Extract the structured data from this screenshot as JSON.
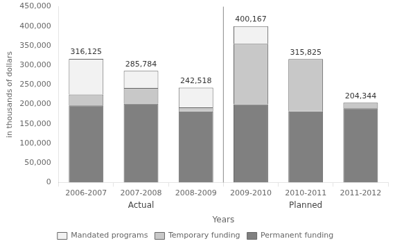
{
  "chart_data": {
    "type": "bar",
    "stacked": true,
    "categories": [
      "2006-2007",
      "2007-2008",
      "2008-2009",
      "2009-2010",
      "2010-2011",
      "2011-2012"
    ],
    "series": [
      {
        "name": "Permanent funding",
        "color": "#808080",
        "values": [
          197000,
          202000,
          182000,
          200000,
          182000,
          190000
        ]
      },
      {
        "name": "Temporary funding",
        "color": "#c8c8c8",
        "values": [
          28000,
          40000,
          10000,
          155000,
          133825,
          14344
        ]
      },
      {
        "name": "Mandated programs",
        "color": "#f2f2f2",
        "values": [
          91125,
          43784,
          50518,
          45167,
          0,
          0
        ]
      }
    ],
    "totals": {
      "values": [
        316125,
        285784,
        242518,
        400167,
        315825,
        204344
      ],
      "value_labels": [
        "316,125",
        "285,784",
        "242,518",
        "400,167",
        "315,825",
        "204,344"
      ]
    },
    "xlabel": "Years",
    "ylabel": "in thousands of dollars",
    "annotations": [
      {
        "text": "Actual",
        "categories": [
          "2006-2007",
          "2007-2008",
          "2008-2009"
        ]
      },
      {
        "text": "Planned",
        "categories": [
          "2009-2010",
          "2010-2011",
          "2011-2012"
        ]
      }
    ],
    "ylim": [
      0,
      450000
    ],
    "yticks": [
      0,
      {
        "value": 50000,
        "label": "50,000"
      },
      {
        "value": 100000,
        "label": "100,000"
      },
      {
        "value": 150000,
        "label": "150,000"
      },
      {
        "value": 200000,
        "label": "200,000"
      },
      {
        "value": 250000,
        "label": "250,000"
      },
      {
        "value": 300000,
        "label": "300,000"
      },
      {
        "value": 350000,
        "label": "350,000"
      },
      {
        "value": 400000,
        "label": "400,000"
      },
      {
        "value": 450000,
        "label": "450,000"
      }
    ],
    "grid": false,
    "legend": "bottom"
  }
}
